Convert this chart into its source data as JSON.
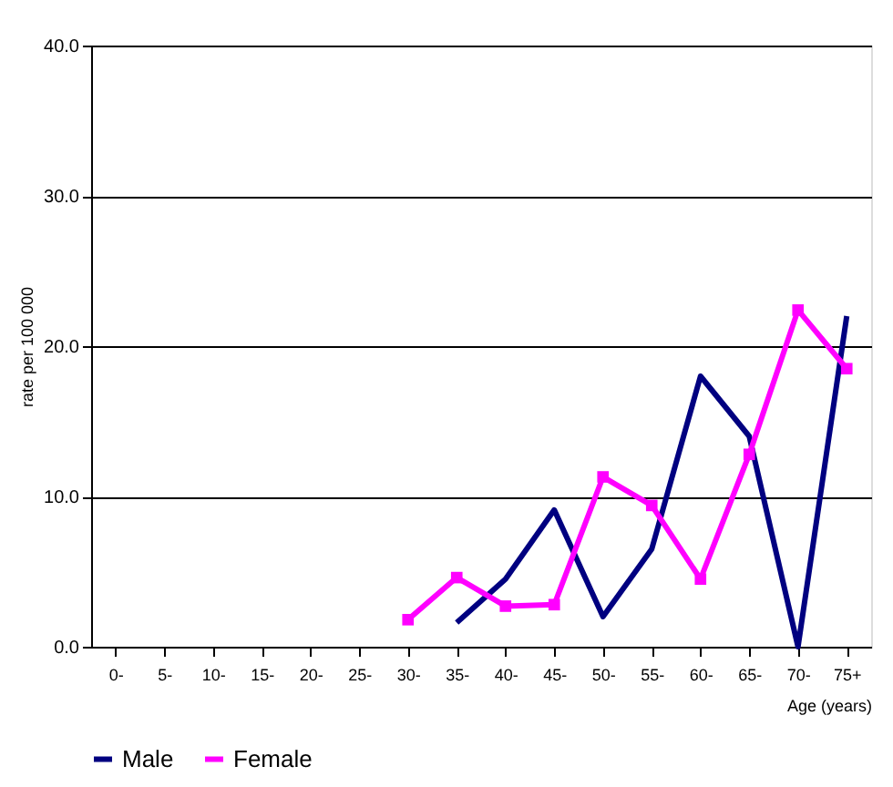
{
  "chart_data": {
    "type": "line",
    "xlabel": "Age (years)",
    "ylabel": "rate per 100 000",
    "categories": [
      "0-",
      "5-",
      "10-",
      "15-",
      "20-",
      "25-",
      "30-",
      "35-",
      "40-",
      "45-",
      "50-",
      "55-",
      "60-",
      "65-",
      "70-",
      "75+"
    ],
    "series": [
      {
        "name": "Male",
        "color": "#000080",
        "marker": "none",
        "values": [
          null,
          null,
          null,
          null,
          null,
          null,
          null,
          1.6,
          4.5,
          9.1,
          2.0,
          6.5,
          18.0,
          14.0,
          0.0,
          22.0
        ]
      },
      {
        "name": "Female",
        "color": "#ff00ff",
        "marker": "square",
        "values": [
          null,
          null,
          null,
          null,
          null,
          null,
          1.8,
          4.6,
          2.7,
          2.8,
          11.3,
          9.4,
          4.5,
          12.8,
          22.4,
          18.5
        ]
      }
    ],
    "ylim": [
      0,
      40
    ],
    "yticks": [
      {
        "value": 0,
        "label": "0.0"
      },
      {
        "value": 10,
        "label": "10.0"
      },
      {
        "value": 20,
        "label": "20.0"
      },
      {
        "value": 30,
        "label": "30.0"
      },
      {
        "value": 40,
        "label": "40.0"
      }
    ],
    "grid": "y",
    "legend": "bottom"
  }
}
